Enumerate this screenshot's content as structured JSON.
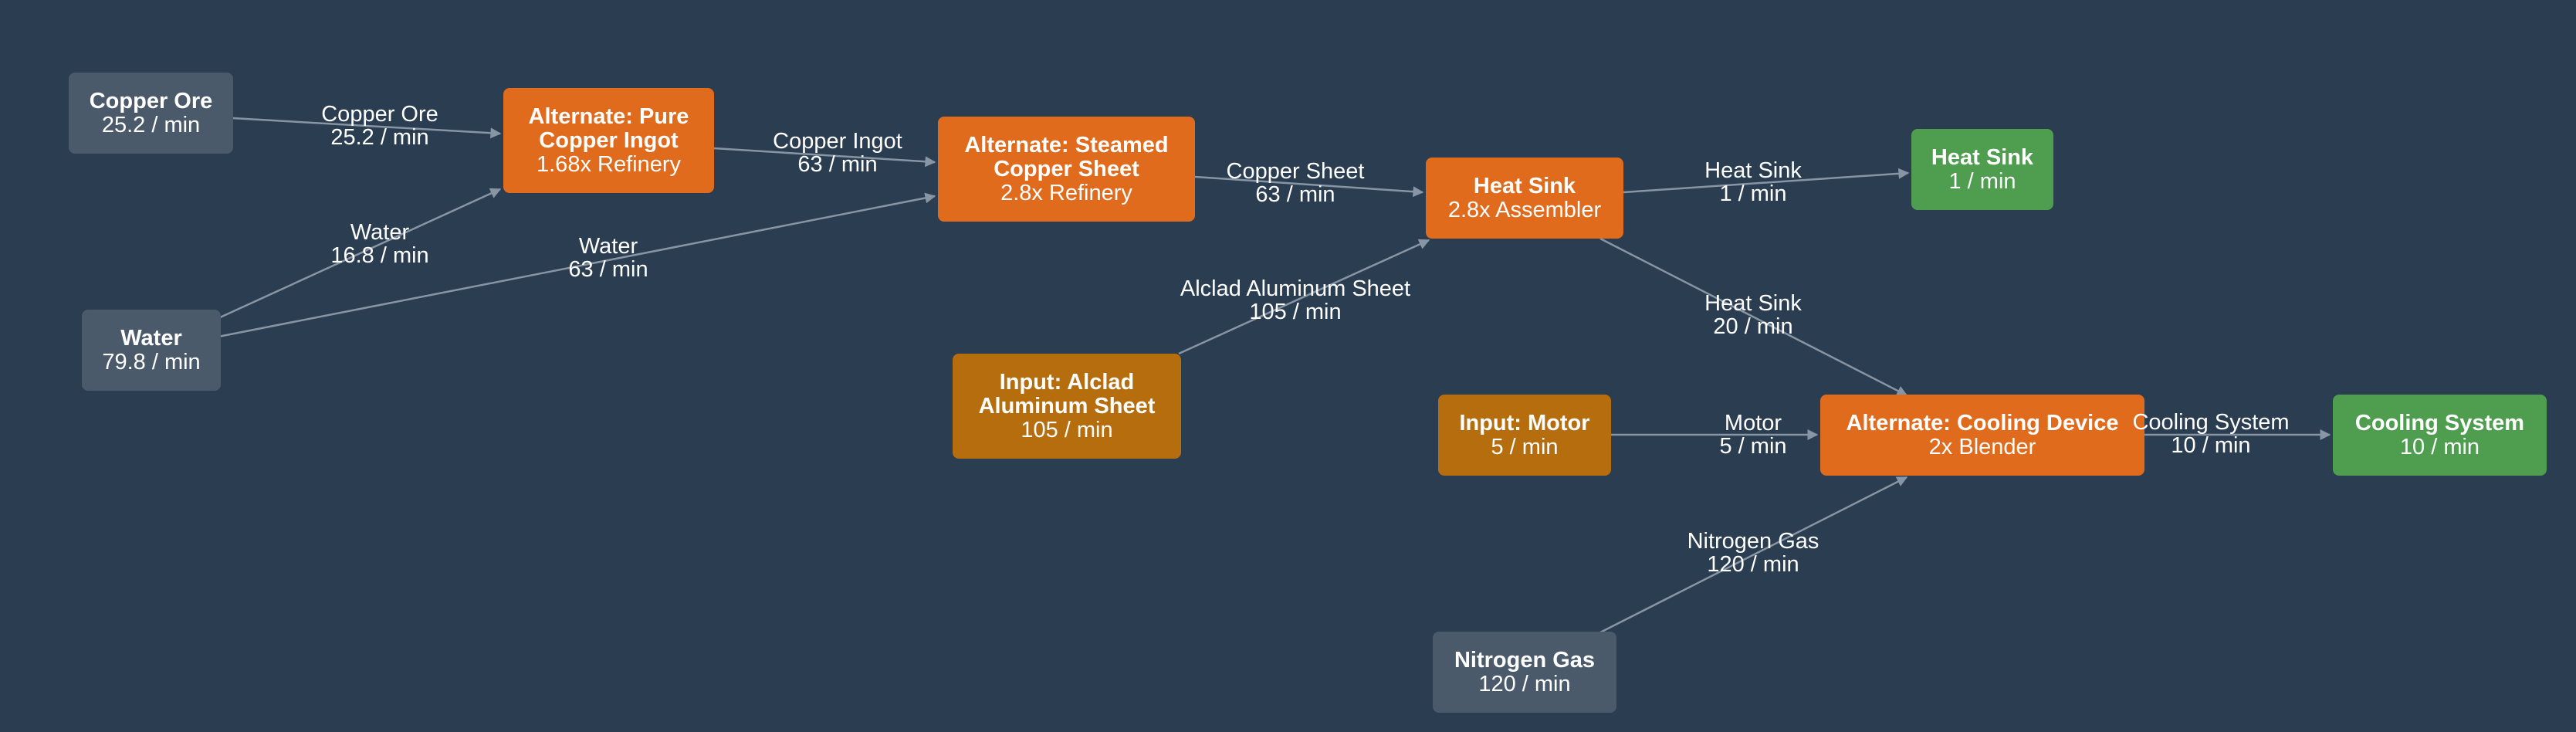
{
  "colors": {
    "background": "#2b3d50",
    "raw": "#4b5a6a",
    "recipe": "#e06b1d",
    "input": "#b66d0e",
    "output": "#4f9d4f",
    "edge": "#8795a5"
  },
  "nodes": {
    "copper_ore": {
      "kind": "raw",
      "title": "Copper Ore",
      "sub": "25.2 / min"
    },
    "water": {
      "kind": "raw",
      "title": "Water",
      "sub": "79.8 / min"
    },
    "pure_ingot": {
      "kind": "recipe",
      "title": "Alternate: Pure\nCopper Ingot",
      "sub": "1.68x Refinery"
    },
    "steamed_sheet": {
      "kind": "recipe",
      "title": "Alternate: Steamed\nCopper Sheet",
      "sub": "2.8x Refinery"
    },
    "alclad_input": {
      "kind": "input",
      "title": "Input: Alclad\nAluminum Sheet",
      "sub": "105 / min"
    },
    "heat_sink": {
      "kind": "recipe",
      "title": "Heat Sink",
      "sub": "2.8x Assembler"
    },
    "heat_sink_out": {
      "kind": "output",
      "title": "Heat Sink",
      "sub": "1 / min"
    },
    "motor_input": {
      "kind": "input",
      "title": "Input: Motor",
      "sub": "5 / min"
    },
    "cooling_device": {
      "kind": "recipe",
      "title": "Alternate: Cooling Device",
      "sub": "2x Blender"
    },
    "cooling_out": {
      "kind": "output",
      "title": "Cooling System",
      "sub": "10 / min"
    },
    "nitrogen": {
      "kind": "raw",
      "title": "Nitrogen Gas",
      "sub": "120 / min"
    }
  },
  "edges": [
    {
      "from": "copper_ore",
      "to": "pure_ingot",
      "item": "Copper Ore",
      "rate": "25.2 / min"
    },
    {
      "from": "water",
      "to": "pure_ingot",
      "item": "Water",
      "rate": "16.8 / min"
    },
    {
      "from": "water",
      "to": "steamed_sheet",
      "item": "Water",
      "rate": "63 / min"
    },
    {
      "from": "pure_ingot",
      "to": "steamed_sheet",
      "item": "Copper Ingot",
      "rate": "63 / min"
    },
    {
      "from": "steamed_sheet",
      "to": "heat_sink",
      "item": "Copper Sheet",
      "rate": "63 / min"
    },
    {
      "from": "alclad_input",
      "to": "heat_sink",
      "item": "Alclad Aluminum Sheet",
      "rate": "105 / min"
    },
    {
      "from": "heat_sink",
      "to": "heat_sink_out",
      "item": "Heat Sink",
      "rate": "1 / min"
    },
    {
      "from": "heat_sink",
      "to": "cooling_device",
      "item": "Heat Sink",
      "rate": "20 / min"
    },
    {
      "from": "motor_input",
      "to": "cooling_device",
      "item": "Motor",
      "rate": "5 / min"
    },
    {
      "from": "nitrogen",
      "to": "cooling_device",
      "item": "Nitrogen Gas",
      "rate": "120 / min"
    },
    {
      "from": "cooling_device",
      "to": "cooling_out",
      "item": "Cooling System",
      "rate": "10 / min"
    }
  ]
}
